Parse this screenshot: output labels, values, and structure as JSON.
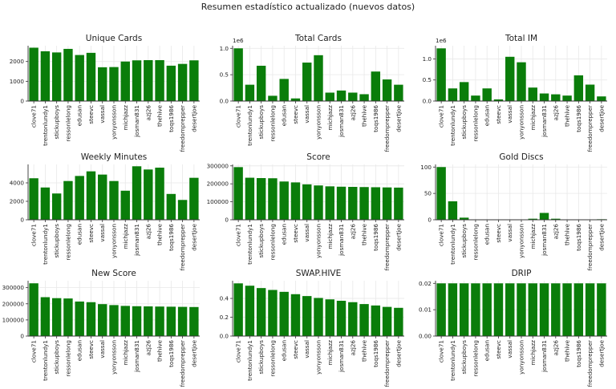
{
  "suptitle": "Resumen estadístico actualizado (nuevos datos)",
  "colors": {
    "bar": "#0a7d0a",
    "grid": "#e8e8e8",
    "axis": "#333333"
  },
  "chart_data": [
    {
      "type": "bar",
      "title": "Unique Cards",
      "xlabel": "",
      "ylabel": "",
      "categories": [
        "clove71",
        "trentonlundy1",
        "stickupboys",
        "ressonlelong",
        "edusan",
        "steevc",
        "vassal",
        "yonyonsson",
        "michjazz",
        "josman831",
        "azj26",
        "thehive",
        "toqs1986",
        "freedomprepper",
        "desertjoe"
      ],
      "values": [
        2700,
        2520,
        2460,
        2640,
        2330,
        2440,
        1710,
        1720,
        2000,
        2060,
        2070,
        2070,
        1790,
        1880,
        2060
      ],
      "ylim": [
        0,
        2800
      ],
      "yticks": [
        0,
        1000,
        2000
      ],
      "ytick_labels": [
        "0",
        "1000",
        "2000"
      ],
      "offset": "",
      "grid": true
    },
    {
      "type": "bar",
      "title": "Total Cards",
      "xlabel": "",
      "ylabel": "",
      "categories": [
        "clove71",
        "trentonlundy1",
        "stickupboys",
        "ressonlelong",
        "edusan",
        "steevc",
        "vassal",
        "yonyonsson",
        "michjazz",
        "josman831",
        "azj26",
        "thehive",
        "toqs1986",
        "freedomprepper",
        "desertjoe"
      ],
      "values": [
        1000000,
        310000,
        670000,
        100000,
        420000,
        50000,
        730000,
        870000,
        160000,
        200000,
        160000,
        130000,
        560000,
        410000,
        310000
      ],
      "ylim": [
        0,
        1050000
      ],
      "yticks": [
        0,
        500000,
        1000000
      ],
      "ytick_labels": [
        "0.0",
        "0.5",
        "1.0"
      ],
      "offset": "1e6",
      "grid": true
    },
    {
      "type": "bar",
      "title": "Total IM",
      "xlabel": "",
      "ylabel": "",
      "categories": [
        "clove71",
        "trentonlundy1",
        "stickupboys",
        "ressonlelong",
        "edusan",
        "steevc",
        "vassal",
        "yonyonsson",
        "michjazz",
        "josman831",
        "azj26",
        "thehive",
        "toqs1986",
        "freedomprepper",
        "desertjoe"
      ],
      "values": [
        1250000,
        300000,
        450000,
        130000,
        300000,
        40000,
        1050000,
        920000,
        320000,
        180000,
        160000,
        130000,
        610000,
        390000,
        110000
      ],
      "ylim": [
        0,
        1312500
      ],
      "yticks": [
        0,
        500000,
        1000000
      ],
      "ytick_labels": [
        "0.0",
        "0.5",
        "1.0"
      ],
      "offset": "1e6",
      "grid": true
    },
    {
      "type": "bar",
      "title": "Weekly Minutes",
      "xlabel": "",
      "ylabel": "",
      "categories": [
        "clove71",
        "trentonlundy1",
        "stickupboys",
        "ressonlelong",
        "edusan",
        "steevc",
        "vassal",
        "yonyonsson",
        "michjazz",
        "josman831",
        "azj26",
        "thehive",
        "toqs1986",
        "freedomprepper",
        "desertjoe"
      ],
      "values": [
        4500,
        3500,
        2850,
        4200,
        4750,
        5250,
        4900,
        4200,
        3150,
        5800,
        5450,
        5650,
        2800,
        2150,
        4550
      ],
      "ylim": [
        0,
        6000
      ],
      "yticks": [
        0,
        2000,
        4000
      ],
      "ytick_labels": [
        "0",
        "2000",
        "4000"
      ],
      "offset": "",
      "grid": true
    },
    {
      "type": "bar",
      "title": "Score",
      "xlabel": "",
      "ylabel": "",
      "categories": [
        "clove71",
        "trentonlundy1",
        "stickupboys",
        "ressonlelong",
        "edusan",
        "steevc",
        "vassal",
        "yonyonsson",
        "michjazz",
        "josman831",
        "azj26",
        "thehive",
        "toqs1986",
        "freedomprepper",
        "desertjoe"
      ],
      "values": [
        293000,
        234000,
        232000,
        231000,
        213000,
        208000,
        197000,
        191000,
        186000,
        184000,
        183000,
        182000,
        181000,
        180000,
        179000
      ],
      "ylim": [
        0,
        308000
      ],
      "yticks": [
        0,
        100000,
        200000,
        300000
      ],
      "ytick_labels": [
        "0",
        "100000",
        "200000",
        "300000"
      ],
      "offset": "",
      "grid": true
    },
    {
      "type": "bar",
      "title": "Gold Discs",
      "xlabel": "",
      "ylabel": "",
      "categories": [
        "clove71",
        "trentonlundy1",
        "stickupboys",
        "ressonlelong",
        "edusan",
        "steevc",
        "vassal",
        "yonyonsson",
        "michjazz",
        "josman831",
        "azj26",
        "thehive",
        "toqs1986",
        "freedomprepper",
        "desertjoe"
      ],
      "values": [
        100,
        35,
        4,
        0,
        0,
        0,
        0,
        0,
        2,
        13,
        2,
        0,
        0,
        0,
        1
      ],
      "ylim": [
        0,
        105
      ],
      "yticks": [
        0,
        50,
        100
      ],
      "ytick_labels": [
        "0",
        "50",
        "100"
      ],
      "offset": "",
      "grid": true
    },
    {
      "type": "bar",
      "title": "New Score",
      "xlabel": "",
      "ylabel": "",
      "categories": [
        "clove71",
        "trentonlundy1",
        "stickupboys",
        "ressonlelong",
        "edusan",
        "steevc",
        "vassal",
        "yonyonsson",
        "michjazz",
        "josman831",
        "azj26",
        "thehive",
        "toqs1986",
        "freedomprepper",
        "desertjoe"
      ],
      "values": [
        327000,
        241000,
        235000,
        233000,
        214000,
        210000,
        198000,
        192000,
        187000,
        185000,
        184000,
        183000,
        182000,
        181000,
        180000
      ],
      "ylim": [
        0,
        343000
      ],
      "yticks": [
        0,
        100000,
        200000,
        300000
      ],
      "ytick_labels": [
        "0",
        "100000",
        "200000",
        "300000"
      ],
      "offset": "",
      "grid": true
    },
    {
      "type": "bar",
      "title": "SWAP.HIVE",
      "xlabel": "",
      "ylabel": "",
      "categories": [
        "clove71",
        "trentonlundy1",
        "stickupboys",
        "ressonlelong",
        "edusan",
        "steevc",
        "vassal",
        "yonyonsson",
        "michjazz",
        "josman831",
        "azj26",
        "thehive",
        "toqs1986",
        "freedomprepper",
        "desertjoe"
      ],
      "values": [
        0.56,
        0.535,
        0.51,
        0.49,
        0.47,
        0.445,
        0.425,
        0.405,
        0.39,
        0.375,
        0.36,
        0.34,
        0.325,
        0.31,
        0.3
      ],
      "ylim": [
        0,
        0.588
      ],
      "yticks": [
        0,
        0.2,
        0.4
      ],
      "ytick_labels": [
        "0.0",
        "0.2",
        "0.4"
      ],
      "offset": "",
      "grid": true
    },
    {
      "type": "bar",
      "title": "DRIP",
      "xlabel": "",
      "ylabel": "",
      "categories": [
        "clove71",
        "trentonlundy1",
        "stickupboys",
        "ressonlelong",
        "edusan",
        "steevc",
        "vassal",
        "yonyonsson",
        "michjazz",
        "josman831",
        "azj26",
        "thehive",
        "toqs1986",
        "freedomprepper",
        "desertjoe"
      ],
      "values": [
        0.02,
        0.02,
        0.02,
        0.02,
        0.02,
        0.02,
        0.02,
        0.02,
        0.02,
        0.02,
        0.02,
        0.02,
        0.02,
        0.02,
        0.02
      ],
      "ylim": [
        0,
        0.021
      ],
      "yticks": [
        0,
        0.01,
        0.02
      ],
      "ytick_labels": [
        "0.00",
        "0.01",
        "0.02"
      ],
      "offset": "",
      "grid": true
    }
  ]
}
